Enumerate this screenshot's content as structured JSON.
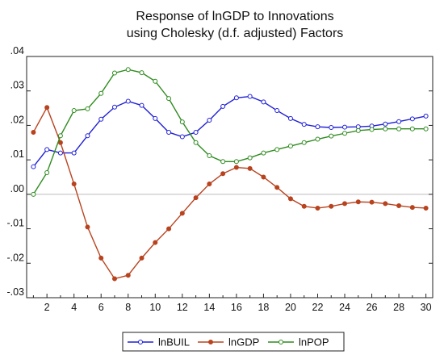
{
  "chart_data": {
    "type": "line",
    "title": [
      "Response of lnGDP to Innovations",
      "using Cholesky (d.f. adjusted) Factors"
    ],
    "xlabel": "",
    "ylabel": "",
    "x": [
      1,
      2,
      3,
      4,
      5,
      6,
      7,
      8,
      9,
      10,
      11,
      12,
      13,
      14,
      15,
      16,
      17,
      18,
      19,
      20,
      21,
      22,
      23,
      24,
      25,
      26,
      27,
      28,
      29,
      30
    ],
    "xlim": [
      0.5,
      30.5
    ],
    "ylim": [
      -0.03,
      0.04
    ],
    "x_ticks": [
      2,
      4,
      6,
      8,
      10,
      12,
      14,
      16,
      18,
      20,
      22,
      24,
      26,
      28,
      30
    ],
    "y_ticks": [
      {
        "value": -0.03,
        "label": "-.03"
      },
      {
        "value": -0.02,
        "label": "-.02"
      },
      {
        "value": -0.01,
        "label": "-.01"
      },
      {
        "value": 0.0,
        "label": ".00"
      },
      {
        "value": 0.01,
        "label": ".01"
      },
      {
        "value": 0.02,
        "label": ".02"
      },
      {
        "value": 0.03,
        "label": ".03"
      },
      {
        "value": 0.04,
        "label": ".04"
      }
    ],
    "zero_line": true,
    "grid": false,
    "legend_position": "bottom",
    "series": [
      {
        "name": "lnBUIL",
        "color": "#1f1fd6",
        "values": [
          0.008,
          0.013,
          0.012,
          0.012,
          0.017,
          0.0218,
          0.0253,
          0.027,
          0.0258,
          0.022,
          0.018,
          0.0167,
          0.018,
          0.0215,
          0.0255,
          0.028,
          0.0284,
          0.0268,
          0.0243,
          0.022,
          0.0203,
          0.0196,
          0.0194,
          0.0195,
          0.0196,
          0.0198,
          0.0204,
          0.0211,
          0.0219,
          0.0227
        ]
      },
      {
        "name": "lnGDP",
        "color": "#b8431f",
        "values": [
          0.018,
          0.0252,
          0.015,
          0.003,
          -0.0095,
          -0.0185,
          -0.0245,
          -0.0235,
          -0.0185,
          -0.014,
          -0.01,
          -0.0055,
          -0.001,
          0.003,
          0.006,
          0.0078,
          0.0075,
          0.005,
          0.002,
          -0.0013,
          -0.0035,
          -0.004,
          -0.0035,
          -0.0027,
          -0.0022,
          -0.0023,
          -0.0027,
          -0.0033,
          -0.0038,
          -0.004
        ]
      },
      {
        "name": "lnPOP",
        "color": "#2e8b1e",
        "values": [
          0.0,
          0.0063,
          0.017,
          0.0243,
          0.0248,
          0.0293,
          0.0352,
          0.0362,
          0.0353,
          0.0328,
          0.0278,
          0.021,
          0.015,
          0.0112,
          0.0095,
          0.0095,
          0.0106,
          0.012,
          0.013,
          0.014,
          0.015,
          0.016,
          0.0169,
          0.0177,
          0.0185,
          0.0188,
          0.019,
          0.019,
          0.019,
          0.019
        ]
      }
    ]
  }
}
